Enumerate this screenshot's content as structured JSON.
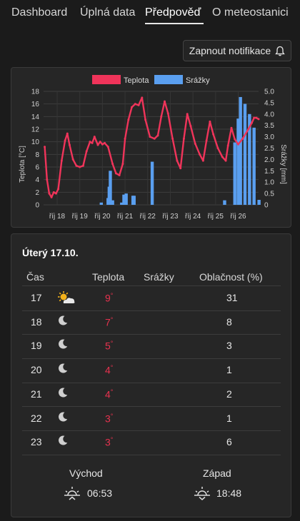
{
  "nav": {
    "tabs": [
      {
        "label": "Dashboard"
      },
      {
        "label": "Úplná data"
      },
      {
        "label": "Předpověď"
      },
      {
        "label": "O meteostanici"
      }
    ]
  },
  "notifications": {
    "button_label": "Zapnout notifikace"
  },
  "chart_data": {
    "type": "line+bar",
    "legend": [
      "Teplota",
      "Srážky"
    ],
    "legend_position": "top",
    "colors": {
      "temperature": "#f0345a",
      "precipitation": "#5a9ff0"
    },
    "ylabel_left": "Teplota [°C]",
    "ylabel_right": "Srážky [mm]",
    "ylim_left": [
      0,
      18
    ],
    "ylim_right": [
      0,
      5.0
    ],
    "yticks_left": [
      "0",
      "2",
      "4",
      "6",
      "8",
      "10",
      "12",
      "14",
      "16",
      "18"
    ],
    "yticks_right": [
      "0",
      "0.5",
      "1.0",
      "1.5",
      "2.0",
      "2.5",
      "3.0",
      "3.5",
      "4.0",
      "4.5",
      "5.0"
    ],
    "x_ticks": [
      "říj 18",
      "říj 19",
      "říj 20",
      "říj 21",
      "říj 22",
      "říj 23",
      "říj 24",
      "říj 25",
      "říj 26"
    ],
    "x_range_days": [
      17.4,
      26.9
    ],
    "series": [
      {
        "name": "Teplota",
        "kind": "line",
        "points": [
          [
            17.45,
            9.2
          ],
          [
            17.55,
            4.0
          ],
          [
            17.65,
            1.8
          ],
          [
            17.75,
            1.2
          ],
          [
            17.85,
            2.0
          ],
          [
            17.95,
            1.8
          ],
          [
            18.05,
            2.5
          ],
          [
            18.2,
            7.0
          ],
          [
            18.35,
            10.2
          ],
          [
            18.45,
            11.3
          ],
          [
            18.55,
            9.5
          ],
          [
            18.7,
            7.2
          ],
          [
            18.85,
            6.2
          ],
          [
            19.0,
            6.0
          ],
          [
            19.15,
            6.2
          ],
          [
            19.3,
            8.5
          ],
          [
            19.45,
            10.0
          ],
          [
            19.55,
            9.8
          ],
          [
            19.65,
            10.8
          ],
          [
            19.8,
            9.5
          ],
          [
            19.9,
            10.0
          ],
          [
            20.0,
            9.6
          ],
          [
            20.1,
            9.8
          ],
          [
            20.25,
            9.2
          ],
          [
            20.45,
            6.5
          ],
          [
            20.6,
            5.0
          ],
          [
            20.75,
            4.7
          ],
          [
            20.9,
            6.5
          ],
          [
            21.0,
            10.5
          ],
          [
            21.15,
            13.5
          ],
          [
            21.3,
            15.5
          ],
          [
            21.45,
            16.0
          ],
          [
            21.6,
            15.8
          ],
          [
            21.75,
            17.0
          ],
          [
            21.9,
            13.5
          ],
          [
            22.1,
            10.8
          ],
          [
            22.3,
            10.5
          ],
          [
            22.45,
            11.0
          ],
          [
            22.6,
            14.0
          ],
          [
            22.75,
            16.4
          ],
          [
            22.9,
            14.5
          ],
          [
            23.1,
            10.5
          ],
          [
            23.3,
            7.0
          ],
          [
            23.45,
            5.8
          ],
          [
            23.6,
            10.5
          ],
          [
            23.75,
            14.4
          ],
          [
            23.9,
            12.5
          ],
          [
            24.1,
            9.7
          ],
          [
            24.3,
            8.0
          ],
          [
            24.45,
            7.0
          ],
          [
            24.6,
            10.2
          ],
          [
            24.75,
            13.2
          ],
          [
            24.9,
            11.2
          ],
          [
            25.1,
            9.0
          ],
          [
            25.3,
            7.6
          ],
          [
            25.45,
            7.0
          ],
          [
            25.55,
            9.4
          ],
          [
            25.7,
            12.2
          ],
          [
            25.85,
            10.4
          ],
          [
            26.0,
            9.6
          ],
          [
            26.2,
            10.5
          ],
          [
            26.45,
            12.0
          ],
          [
            26.6,
            13.0
          ],
          [
            26.7,
            13.8
          ],
          [
            26.8,
            13.8
          ],
          [
            26.9,
            13.6
          ]
        ]
      },
      {
        "name": "Srážky",
        "kind": "bar",
        "bar_width_days": 0.14,
        "bars": [
          [
            19.95,
            0.1
          ],
          [
            20.25,
            0.3
          ],
          [
            20.3,
            0.8
          ],
          [
            20.35,
            1.5
          ],
          [
            20.45,
            0.2
          ],
          [
            20.85,
            0.1
          ],
          [
            20.95,
            0.45
          ],
          [
            21.05,
            0.5
          ],
          [
            21.35,
            0.4
          ],
          [
            21.4,
            0.4
          ],
          [
            22.2,
            1.9
          ],
          [
            25.4,
            0.2
          ],
          [
            25.85,
            2.75
          ],
          [
            26.0,
            3.8
          ],
          [
            26.1,
            4.75
          ],
          [
            26.3,
            4.45
          ],
          [
            26.5,
            4.0
          ],
          [
            26.7,
            3.4
          ],
          [
            26.92,
            0.22
          ]
        ]
      }
    ]
  },
  "forecast": {
    "day_title": "Úterý 17.10.",
    "headers": {
      "time": "Čas",
      "temp": "Teplota",
      "rain": "Srážky",
      "cloud": "Oblačnost (%)"
    },
    "temp_unit": "°",
    "rows": [
      {
        "hour": "17",
        "icon": "partly-sunny-icon",
        "temp": "9",
        "cloud": "31"
      },
      {
        "hour": "18",
        "icon": "moon-icon",
        "temp": "7",
        "cloud": "8"
      },
      {
        "hour": "19",
        "icon": "moon-icon",
        "temp": "5",
        "cloud": "3"
      },
      {
        "hour": "20",
        "icon": "moon-icon",
        "temp": "4",
        "cloud": "1"
      },
      {
        "hour": "21",
        "icon": "moon-icon",
        "temp": "4",
        "cloud": "2"
      },
      {
        "hour": "22",
        "icon": "moon-icon",
        "temp": "3",
        "cloud": "1"
      },
      {
        "hour": "23",
        "icon": "moon-icon",
        "temp": "3",
        "cloud": "6"
      }
    ],
    "sunrise": {
      "label": "Východ",
      "time": "06:53",
      "icon": "sunrise-icon"
    },
    "sunset": {
      "label": "Západ",
      "time": "18:48",
      "icon": "sunset-icon"
    }
  }
}
